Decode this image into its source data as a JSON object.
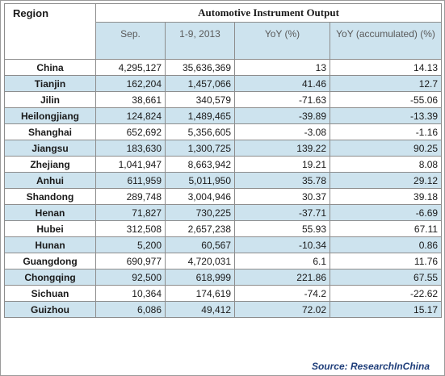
{
  "chart_data": {
    "type": "table",
    "title": "Automotive Instrument Output",
    "region_header": "Region",
    "columns": [
      "Sep.",
      "1-9, 2013",
      "YoY (%)",
      "YoY (accumulated) (%)"
    ],
    "rows": [
      {
        "region": "China",
        "sep": "4,295,127",
        "ytd": "35,636,369",
        "yoy": "13",
        "yoy_acc": "14.13"
      },
      {
        "region": "Tianjin",
        "sep": "162,204",
        "ytd": "1,457,066",
        "yoy": "41.46",
        "yoy_acc": "12.7"
      },
      {
        "region": "Jilin",
        "sep": "38,661",
        "ytd": "340,579",
        "yoy": "-71.63",
        "yoy_acc": "-55.06"
      },
      {
        "region": "Heilongjiang",
        "sep": "124,824",
        "ytd": "1,489,465",
        "yoy": "-39.89",
        "yoy_acc": "-13.39"
      },
      {
        "region": "Shanghai",
        "sep": "652,692",
        "ytd": "5,356,605",
        "yoy": "-3.08",
        "yoy_acc": "-1.16"
      },
      {
        "region": "Jiangsu",
        "sep": "183,630",
        "ytd": "1,300,725",
        "yoy": "139.22",
        "yoy_acc": "90.25"
      },
      {
        "region": "Zhejiang",
        "sep": "1,041,947",
        "ytd": "8,663,942",
        "yoy": "19.21",
        "yoy_acc": "8.08"
      },
      {
        "region": "Anhui",
        "sep": "611,959",
        "ytd": "5,011,950",
        "yoy": "35.78",
        "yoy_acc": "29.12"
      },
      {
        "region": "Shandong",
        "sep": "289,748",
        "ytd": "3,004,946",
        "yoy": "30.37",
        "yoy_acc": "39.18"
      },
      {
        "region": "Henan",
        "sep": "71,827",
        "ytd": "730,225",
        "yoy": "-37.71",
        "yoy_acc": "-6.69"
      },
      {
        "region": "Hubei",
        "sep": "312,508",
        "ytd": "2,657,238",
        "yoy": "55.93",
        "yoy_acc": "67.11"
      },
      {
        "region": "Hunan",
        "sep": "5,200",
        "ytd": "60,567",
        "yoy": "-10.34",
        "yoy_acc": "0.86"
      },
      {
        "region": "Guangdong",
        "sep": "690,977",
        "ytd": "4,720,031",
        "yoy": "6.1",
        "yoy_acc": "11.76"
      },
      {
        "region": "Chongqing",
        "sep": "92,500",
        "ytd": "618,999",
        "yoy": "221.86",
        "yoy_acc": "67.55"
      },
      {
        "region": "Sichuan",
        "sep": "10,364",
        "ytd": "174,619",
        "yoy": "-74.2",
        "yoy_acc": "-22.62"
      },
      {
        "region": "Guizhou",
        "sep": "6,086",
        "ytd": "49,412",
        "yoy": "72.02",
        "yoy_acc": "15.17"
      }
    ],
    "source": "Source: ResearchInChina",
    "colors": {
      "band": "#cde3ee",
      "border": "#8d8d8d",
      "source_text": "#1f3e7a"
    }
  }
}
